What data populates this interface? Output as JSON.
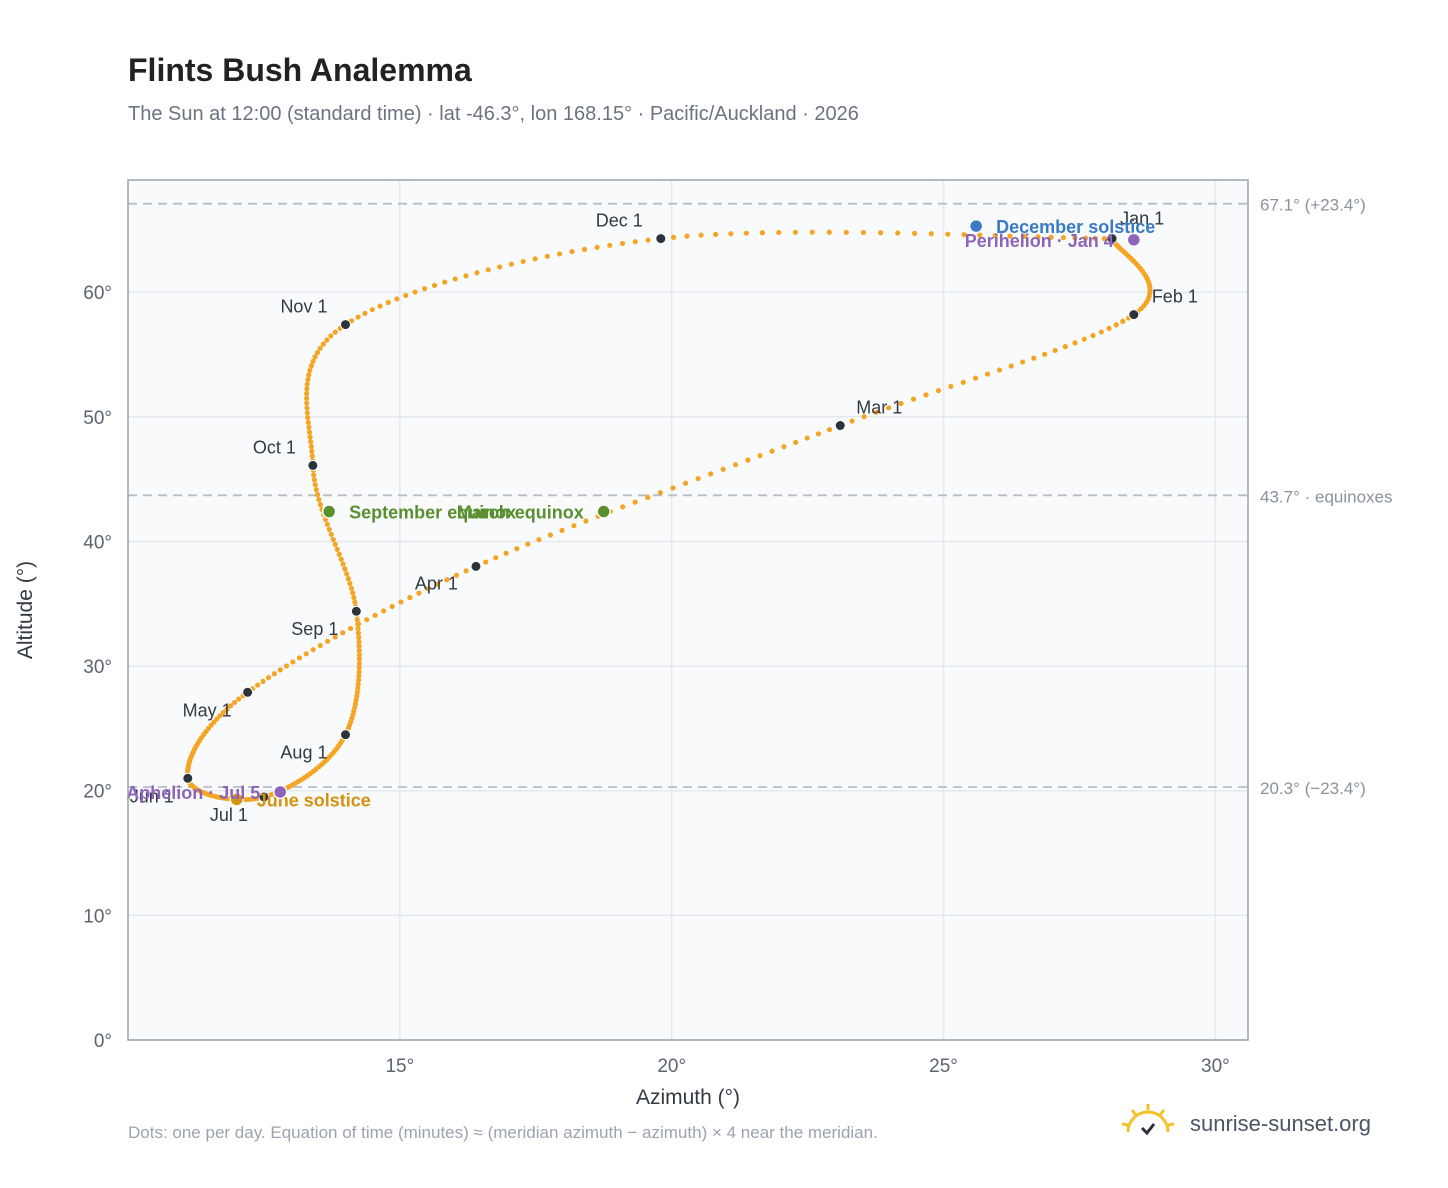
{
  "header": {
    "title": "Flints Bush Analemma",
    "subtitle": "The Sun at 12:00 (standard time) · lat -46.3°, lon 168.15° · Pacific/Auckland · 2026"
  },
  "footer": {
    "note": "Dots: one per day. Equation of time (minutes) ≈ (meridian azimuth − azimuth) × 4 near the meridian.",
    "brand": "sunrise-sunset.org"
  },
  "colors": {
    "curve": "#f5a524",
    "month_marker": "#2d333b",
    "solstice_december": "#3b7ac4",
    "solstice_june": "#d4920f",
    "equinox": "#5a8f2e",
    "apsis": "#8e64b8",
    "reference_line": "#b8bec6",
    "grid": "#e5e9ee",
    "plot_background": "#f8fafc"
  },
  "chart_data": {
    "type": "scatter",
    "title": "Flints Bush Analemma",
    "xlabel": "Azimuth (°)",
    "ylabel": "Altitude (°)",
    "xlim": [
      10,
      30.6
    ],
    "ylim": [
      0,
      69
    ],
    "xticks": [
      15,
      20,
      25,
      30
    ],
    "yticks": [
      0,
      10,
      20,
      30,
      40,
      50,
      60
    ],
    "xtick_labels": [
      "15°",
      "20°",
      "25°",
      "30°"
    ],
    "ytick_labels": [
      "0°",
      "10°",
      "20°",
      "30°",
      "40°",
      "50°",
      "60°"
    ],
    "grid": true,
    "reference_lines": [
      {
        "y": 67.1,
        "label": "67.1° (+23.4°)"
      },
      {
        "y": 43.7,
        "label": "43.7° · equinoxes"
      },
      {
        "y": 20.3,
        "label": "20.3° (−23.4°)"
      }
    ],
    "analemma_keypoints": [
      {
        "doy": 1,
        "az": 28.1,
        "alt": 64.3
      },
      {
        "doy": 32,
        "az": 28.5,
        "alt": 58.2
      },
      {
        "doy": 60,
        "az": 23.1,
        "alt": 49.3
      },
      {
        "doy": 91,
        "az": 16.4,
        "alt": 38.0
      },
      {
        "doy": 121,
        "az": 12.2,
        "alt": 27.9
      },
      {
        "doy": 152,
        "az": 11.1,
        "alt": 21.0
      },
      {
        "doy": 182,
        "az": 12.5,
        "alt": 19.5
      },
      {
        "doy": 213,
        "az": 14.0,
        "alt": 24.5
      },
      {
        "doy": 244,
        "az": 14.2,
        "alt": 34.4
      },
      {
        "doy": 274,
        "az": 13.4,
        "alt": 46.1
      },
      {
        "doy": 305,
        "az": 14.0,
        "alt": 57.4
      },
      {
        "doy": 335,
        "az": 19.8,
        "alt": 64.3
      },
      {
        "doy": 366,
        "az": 28.1,
        "alt": 64.3
      }
    ],
    "month_markers": [
      {
        "label": "Jan 1",
        "az": 28.1,
        "alt": 64.3,
        "anchor": "start",
        "dx": 8,
        "dy": -14
      },
      {
        "label": "Feb 1",
        "az": 28.5,
        "alt": 58.2,
        "anchor": "start",
        "dx": 18,
        "dy": -12
      },
      {
        "label": "Mar 1",
        "az": 23.1,
        "alt": 49.3,
        "anchor": "start",
        "dx": 16,
        "dy": -12
      },
      {
        "label": "Apr 1",
        "az": 16.4,
        "alt": 38.0,
        "anchor": "end",
        "dx": -18,
        "dy": 23
      },
      {
        "label": "May 1",
        "az": 12.2,
        "alt": 27.9,
        "anchor": "end",
        "dx": -16,
        "dy": 24
      },
      {
        "label": "Jun 1",
        "az": 11.1,
        "alt": 21.0,
        "anchor": "end",
        "dx": -14,
        "dy": 24
      },
      {
        "label": "Jul 1",
        "az": 12.5,
        "alt": 19.5,
        "anchor": "end",
        "dx": -16,
        "dy": 24
      },
      {
        "label": "Aug 1",
        "az": 14.0,
        "alt": 24.5,
        "anchor": "end",
        "dx": -18,
        "dy": 24
      },
      {
        "label": "Sep 1",
        "az": 14.2,
        "alt": 34.4,
        "anchor": "end",
        "dx": -18,
        "dy": 24
      },
      {
        "label": "Oct 1",
        "az": 13.4,
        "alt": 46.1,
        "anchor": "end",
        "dx": -17,
        "dy": -12
      },
      {
        "label": "Nov 1",
        "az": 14.0,
        "alt": 57.4,
        "anchor": "end",
        "dx": -18,
        "dy": -12
      },
      {
        "label": "Dec 1",
        "az": 19.8,
        "alt": 64.3,
        "anchor": "end",
        "dx": -18,
        "dy": -12
      }
    ],
    "events": [
      {
        "label": "December solstice",
        "az": 25.6,
        "alt": 65.3,
        "color": "#3b7ac4",
        "anchor": "start",
        "dx": 20,
        "dy": 7
      },
      {
        "label": "Perihelion · Jan 4",
        "az": 28.5,
        "alt": 64.2,
        "color": "#8e64b8",
        "anchor": "end",
        "dx": -20,
        "dy": 7
      },
      {
        "label": "March equinox",
        "az": 18.75,
        "alt": 42.4,
        "color": "#5a8f2e",
        "anchor": "end",
        "dx": -20,
        "dy": 7
      },
      {
        "label": "September equinox",
        "az": 13.7,
        "alt": 42.4,
        "color": "#5a8f2e",
        "anchor": "start",
        "dx": 20,
        "dy": 7
      },
      {
        "label": "June solstice",
        "az": 12.0,
        "alt": 19.3,
        "color": "#d4920f",
        "anchor": "start",
        "dx": 20,
        "dy": 7
      },
      {
        "label": "Aphelion · Jul 5",
        "az": 12.8,
        "alt": 19.9,
        "color": "#8e64b8",
        "anchor": "end",
        "dx": -20,
        "dy": 7
      }
    ]
  }
}
